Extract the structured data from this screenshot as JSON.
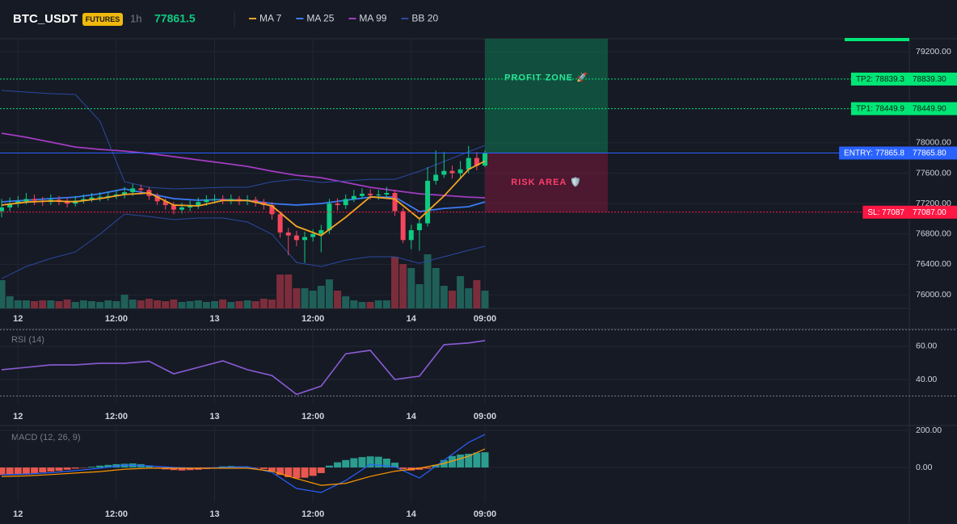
{
  "chart_data": [
    {
      "type": "candlestick",
      "title": "BTC_USDT",
      "badge": "FUTURES",
      "interval": "1h",
      "last_price": 77861.5,
      "x": [
        -2,
        -1,
        0,
        1,
        2,
        3,
        4,
        5,
        6,
        7,
        8,
        9,
        10,
        11,
        12,
        13,
        14,
        15,
        16,
        17,
        18,
        19,
        20,
        21,
        22,
        23,
        24,
        25,
        26,
        27,
        28,
        29,
        30,
        31,
        32,
        33,
        34,
        35,
        36,
        37,
        38,
        39,
        40,
        41,
        42,
        43,
        44,
        45,
        46,
        47,
        48,
        49,
        50,
        51,
        52,
        53,
        54,
        55,
        56,
        57
      ],
      "open": [
        77100,
        77150,
        77200,
        77230,
        77260,
        77240,
        77220,
        77250,
        77230,
        77200,
        77240,
        77260,
        77280,
        77290,
        77300,
        77320,
        77350,
        77400,
        77380,
        77300,
        77230,
        77180,
        77120,
        77150,
        77180,
        77220,
        77250,
        77260,
        77240,
        77260,
        77230,
        77250,
        77220,
        77180,
        77060,
        76820,
        76780,
        76720,
        76760,
        76800,
        76850,
        77200,
        77180,
        77260,
        77300,
        77330,
        77310,
        77320,
        77340,
        77100,
        76720,
        76850,
        76940,
        77500,
        77580,
        77630,
        77600,
        77650,
        77800,
        77700
      ],
      "high": [
        77260,
        77280,
        77300,
        77340,
        77320,
        77290,
        77320,
        77300,
        77270,
        77300,
        77320,
        77340,
        77350,
        77360,
        77380,
        77420,
        77460,
        77450,
        77420,
        77340,
        77270,
        77220,
        77210,
        77240,
        77280,
        77310,
        77320,
        77310,
        77320,
        77300,
        77310,
        77290,
        77260,
        77220,
        77100,
        76880,
        76840,
        76830,
        76860,
        76920,
        77260,
        77270,
        77320,
        77380,
        77400,
        77390,
        77380,
        77420,
        77380,
        77140,
        76920,
        77000,
        77680,
        77900,
        77880,
        77700,
        77760,
        77960,
        77880,
        77900
      ],
      "low": [
        77020,
        77100,
        77150,
        77190,
        77180,
        77170,
        77180,
        77180,
        77150,
        77160,
        77200,
        77220,
        77230,
        77240,
        77260,
        77270,
        77300,
        77320,
        77250,
        77180,
        77120,
        77060,
        77070,
        77100,
        77130,
        77170,
        77200,
        77190,
        77190,
        77180,
        77180,
        77160,
        77120,
        76990,
        76750,
        76520,
        76640,
        76420,
        76700,
        76560,
        76800,
        77110,
        77130,
        77220,
        77260,
        77250,
        77250,
        77270,
        77040,
        76680,
        76600,
        76580,
        76900,
        77450,
        77540,
        77530,
        77540,
        77600,
        77640,
        77680
      ],
      "close": [
        77150,
        77200,
        77230,
        77260,
        77240,
        77220,
        77250,
        77230,
        77200,
        77240,
        77260,
        77280,
        77290,
        77300,
        77320,
        77350,
        77400,
        77380,
        77300,
        77230,
        77180,
        77120,
        77150,
        77180,
        77220,
        77250,
        77260,
        77240,
        77260,
        77230,
        77250,
        77220,
        77180,
        77060,
        76820,
        76780,
        76720,
        76760,
        76800,
        76850,
        77200,
        77180,
        77260,
        77300,
        77330,
        77310,
        77320,
        77340,
        77100,
        76720,
        76850,
        76940,
        77500,
        77580,
        77630,
        77600,
        77650,
        77800,
        77700,
        77860
      ],
      "volume": [
        35,
        15,
        10,
        10,
        9,
        10,
        10,
        9,
        11,
        8,
        10,
        9,
        8,
        10,
        9,
        17,
        11,
        10,
        12,
        10,
        9,
        11,
        8,
        9,
        10,
        8,
        9,
        11,
        8,
        9,
        10,
        9,
        12,
        11,
        42,
        42,
        25,
        25,
        22,
        28,
        36,
        22,
        15,
        10,
        8,
        8,
        10,
        10,
        64,
        55,
        50,
        30,
        67,
        50,
        28,
        22,
        40,
        25,
        35,
        22
      ],
      "up_color": "#0ecb81",
      "down_color": "#f6465d",
      "volume_up_color": "#1f5f58",
      "volume_down_color": "#7c2d3b",
      "lines": [
        {
          "name": "MA 7",
          "color": "#f5a623",
          "x": [
            -2,
            1,
            4,
            7,
            10,
            13,
            16,
            19,
            22,
            25,
            28,
            31,
            34,
            37,
            40,
            43,
            46,
            49,
            52,
            55,
            57
          ],
          "values": [
            77180,
            77220,
            77235,
            77225,
            77265,
            77320,
            77340,
            77180,
            77170,
            77240,
            77240,
            77170,
            76900,
            76780,
            77020,
            77290,
            77260,
            77000,
            77300,
            77650,
            77760
          ]
        },
        {
          "name": "MA 25",
          "color": "#3b7bf6",
          "x": [
            -2,
            1,
            4,
            7,
            10,
            13,
            16,
            19,
            22,
            25,
            28,
            31,
            34,
            37,
            40,
            43,
            46,
            49,
            52,
            55,
            57
          ],
          "values": [
            77223,
            77244,
            77265,
            77286,
            77329,
            77393,
            77329,
            77265,
            77244,
            77254,
            77244,
            77201,
            77180,
            77201,
            77244,
            77286,
            77286,
            77095,
            77137,
            77159,
            77223
          ]
        },
        {
          "name": "MA 99",
          "color": "#a23cc2",
          "x": [
            -2,
            1,
            4,
            7,
            10,
            13,
            16,
            19,
            22,
            25,
            28,
            31,
            34,
            37,
            40,
            43,
            46,
            49,
            52,
            55,
            57
          ],
          "values": [
            78126,
            78073,
            78009,
            77945,
            77914,
            77892,
            77860,
            77818,
            77775,
            77733,
            77690,
            77627,
            77573,
            77541,
            77478,
            77414,
            77371,
            77329,
            77308,
            77286,
            77276
          ]
        },
        {
          "name": "BB 20",
          "color": "#2b4aa0",
          "x": [
            -2,
            1,
            4,
            7,
            10,
            13,
            16,
            19,
            22,
            25,
            28,
            31,
            34,
            37,
            40,
            43,
            46,
            49,
            52,
            55,
            57
          ],
          "values": [
            78690,
            78668,
            78647,
            78637,
            78286,
            77488,
            77414,
            77393,
            77403,
            77414,
            77414,
            77488,
            77520,
            77478,
            77499,
            77520,
            77520,
            77626,
            77754,
            77882,
            77967
          ],
          "lower": [
            76212,
            76372,
            76478,
            76563,
            76797,
            77063,
            77031,
            76989,
            77010,
            77010,
            76957,
            76797,
            76425,
            76372,
            76457,
            76500,
            76500,
            76414,
            76500,
            76585,
            76638
          ]
        }
      ],
      "levels": [
        {
          "text": "TP2: 78839.3",
          "value": 78839.3,
          "axis_label": "78839.30",
          "color": "#00e676",
          "style": "dotted"
        },
        {
          "text": "TP1: 78449.9",
          "value": 78449.9,
          "axis_label": "78449.90",
          "color": "#00e676",
          "style": "dotted"
        },
        {
          "text": "ENTRY: 77865.8",
          "value": 77865.8,
          "axis_label": "77865.80",
          "color": "#2962ff",
          "style": "solid"
        },
        {
          "text": "SL: 77087",
          "value": 77087,
          "axis_label": "77087.00",
          "color": "#ff1744",
          "style": "dotted"
        }
      ],
      "zones": [
        {
          "text": "PROFIT ZONE 🚀",
          "x": [
            57,
            72
          ],
          "y": [
            77865.8,
            79370
          ],
          "color": "#0f7a52",
          "text_color": "#2ee59d"
        },
        {
          "text": "RISK AREA 🛡️",
          "x": [
            57,
            72
          ],
          "y": [
            77087,
            77865.8
          ],
          "color": "#7a1a3a",
          "text_color": "#ff3d6e"
        }
      ],
      "xlim": [
        -2.2,
        108.8
      ],
      "ylim": [
        75820,
        79370
      ],
      "xticks": [
        {
          "value": 0,
          "label": "12"
        },
        {
          "value": 12,
          "label": "12:00"
        },
        {
          "value": 24,
          "label": "13"
        },
        {
          "value": 36,
          "label": "12:00"
        },
        {
          "value": 48,
          "label": "14"
        },
        {
          "value": 57,
          "label": "09:00"
        }
      ],
      "yticks": [
        {
          "value": 79200,
          "label": "79200.00"
        },
        {
          "value": 78000,
          "label": "78000.00"
        },
        {
          "value": 77600,
          "label": "77600.00"
        },
        {
          "value": 77200,
          "label": "77200.00"
        },
        {
          "value": 76800,
          "label": "76800.00"
        },
        {
          "value": 76400,
          "label": "76400.00"
        },
        {
          "value": 76000,
          "label": "76000.00"
        }
      ],
      "grid": true
    },
    {
      "type": "line",
      "title": "RSI (14)",
      "color": "#8a5cd6",
      "x": [
        -2,
        1,
        4,
        7,
        10,
        13,
        16,
        19,
        22,
        25,
        28,
        31,
        34,
        37,
        40,
        43,
        46,
        49,
        52,
        55,
        57
      ],
      "values": [
        45.9,
        47.3,
        48.8,
        48.8,
        49.8,
        49.8,
        51.0,
        43.4,
        47.3,
        51.2,
        45.9,
        42.4,
        31.0,
        36.0,
        55.5,
        57.6,
        40.0,
        42.0,
        61.0,
        62.0,
        63.5
      ],
      "bands": [
        70,
        30
      ],
      "xlim": [
        -2.2,
        108.8
      ],
      "ylim": [
        25.4,
        70.2
      ],
      "xticks": [
        {
          "value": 0,
          "label": "12"
        },
        {
          "value": 12,
          "label": "12:00"
        },
        {
          "value": 24,
          "label": "13"
        },
        {
          "value": 36,
          "label": "12:00"
        },
        {
          "value": 48,
          "label": "14"
        },
        {
          "value": 57,
          "label": "09:00"
        }
      ],
      "yticks": [
        {
          "value": 60,
          "label": "60.00"
        },
        {
          "value": 40,
          "label": "40.00"
        }
      ],
      "grid": true
    },
    {
      "type": "macd",
      "title": "MACD (12, 26, 9)",
      "x": [
        -2,
        -1,
        0,
        1,
        2,
        3,
        4,
        5,
        6,
        7,
        8,
        9,
        10,
        11,
        12,
        13,
        14,
        15,
        16,
        17,
        18,
        19,
        20,
        21,
        22,
        23,
        24,
        25,
        26,
        27,
        28,
        29,
        30,
        31,
        32,
        33,
        34,
        35,
        36,
        37,
        38,
        39,
        40,
        41,
        42,
        43,
        44,
        45,
        46,
        47,
        48,
        49,
        50,
        51,
        52,
        53,
        54,
        55,
        56,
        57
      ],
      "values": [
        -40,
        -38,
        -36,
        -34,
        -30,
        -26,
        -22,
        -18,
        -12,
        -6,
        -2,
        4,
        10,
        14,
        18,
        20,
        22,
        18,
        10,
        -4,
        -10,
        -14,
        -16,
        -14,
        -12,
        -8,
        -4,
        6,
        8,
        6,
        4,
        -2,
        -8,
        -20,
        -40,
        -52,
        -58,
        -55,
        -45,
        -30,
        10,
        28,
        40,
        50,
        56,
        60,
        58,
        48,
        26,
        -8,
        -16,
        -12,
        -6,
        14,
        40,
        62,
        70,
        74,
        80,
        82
      ],
      "positive_color": "#2a9d8f",
      "negative_color": "#e8584f",
      "series": [
        {
          "name": "MACD",
          "color": "#2962ff",
          "x": [
            -2,
            1,
            4,
            7,
            10,
            13,
            16,
            19,
            22,
            25,
            28,
            31,
            34,
            37,
            40,
            43,
            46,
            49,
            52,
            55,
            57
          ],
          "values": [
            -39,
            -35,
            -28,
            -17,
            -4,
            13,
            9,
            0,
            -4,
            0,
            4,
            -26,
            -113,
            -135,
            -70,
            17,
            4,
            -57,
            39,
            135,
            178
          ]
        },
        {
          "name": "Signal",
          "color": "#ff9800",
          "x": [
            -2,
            1,
            4,
            7,
            10,
            13,
            16,
            19,
            22,
            25,
            28,
            31,
            34,
            37,
            40,
            43,
            46,
            49,
            52,
            55,
            57
          ],
          "values": [
            -48,
            -45,
            -38,
            -30,
            -22,
            -9,
            -4,
            -4,
            -4,
            -4,
            -4,
            -20,
            -60,
            -96,
            -85,
            -48,
            -20,
            -4,
            22,
            61,
            100
          ]
        }
      ],
      "xlim": [
        -2.2,
        108.8
      ],
      "ylim": [
        -187,
        222
      ],
      "xticks": [
        {
          "value": 0,
          "label": "12"
        },
        {
          "value": 12,
          "label": "12:00"
        },
        {
          "value": 24,
          "label": "13"
        },
        {
          "value": 36,
          "label": "12:00"
        },
        {
          "value": 48,
          "label": "14"
        },
        {
          "value": 57,
          "label": "09:00"
        }
      ],
      "yticks": [
        {
          "value": 200,
          "label": "200.00"
        },
        {
          "value": 0,
          "label": "0.00"
        }
      ],
      "grid": true
    }
  ]
}
